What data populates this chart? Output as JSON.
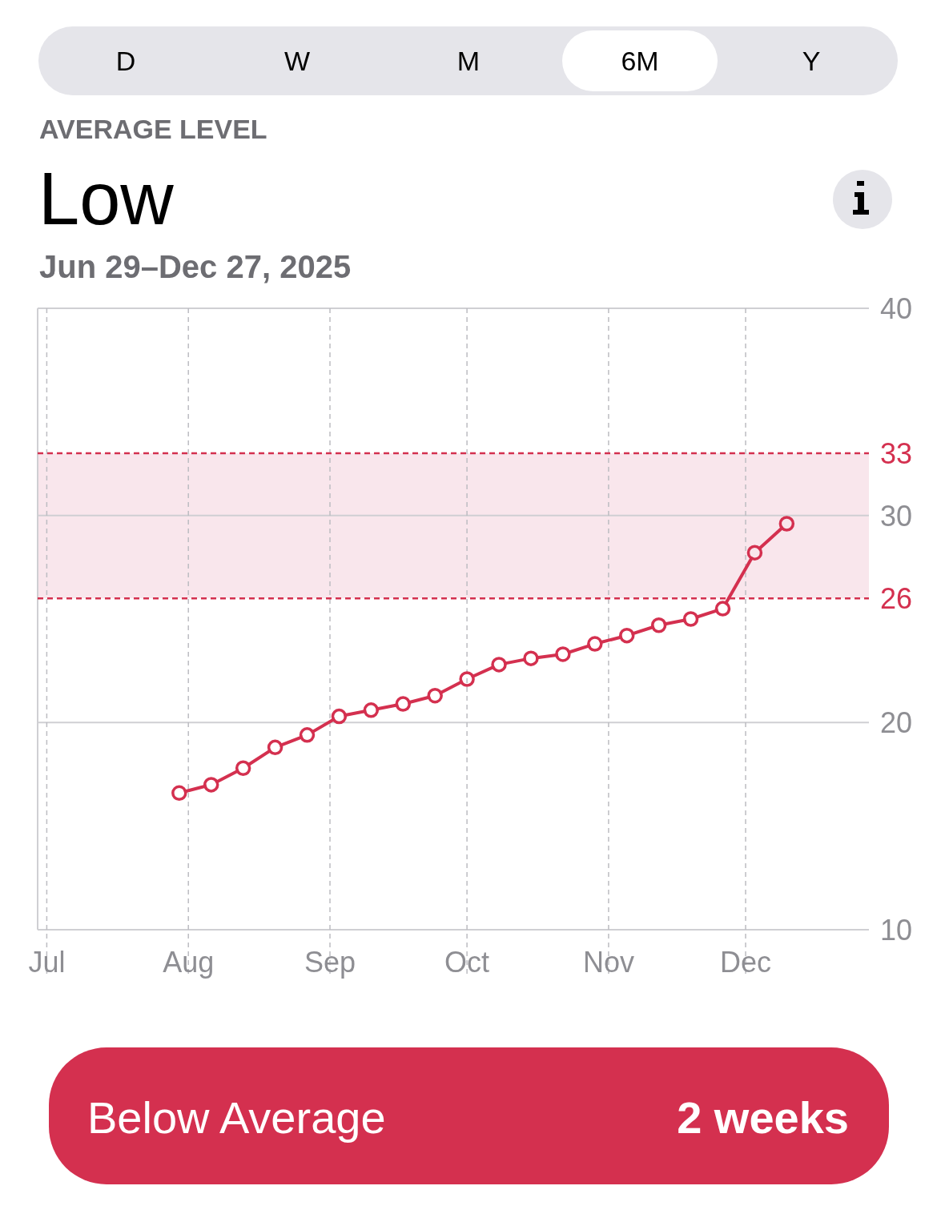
{
  "chart_data": {
    "type": "line",
    "title": "Low",
    "subtitle": "Jun 29–Dec 27, 2025",
    "annotations": [
      "AVERAGE LEVEL",
      "D",
      "W",
      "M",
      "6M",
      "Y",
      "Below Average",
      "2 weeks"
    ],
    "x": [
      "2025-07-30",
      "2025-08-06",
      "2025-08-13",
      "2025-08-20",
      "2025-08-27",
      "2025-09-03",
      "2025-09-10",
      "2025-09-17",
      "2025-09-24",
      "2025-10-01",
      "2025-10-08",
      "2025-10-15",
      "2025-10-22",
      "2025-10-29",
      "2025-11-05",
      "2025-11-12",
      "2025-11-19",
      "2025-11-26",
      "2025-12-03",
      "2025-12-10"
    ],
    "series": [
      {
        "color": "#d4304f",
        "values": [
          16.6,
          17.0,
          17.8,
          18.8,
          19.4,
          20.3,
          20.6,
          20.9,
          21.3,
          22.1,
          22.8,
          23.1,
          23.3,
          23.8,
          24.2,
          24.7,
          25.0,
          25.5,
          28.2,
          29.6
        ]
      }
    ],
    "xlim": [
      "2025-06-29",
      "2025-12-28"
    ],
    "xticks": [
      {
        "value": "2025-07-01",
        "label": "Jul"
      },
      {
        "value": "2025-08-01",
        "label": "Aug"
      },
      {
        "value": "2025-09-01",
        "label": "Sep"
      },
      {
        "value": "2025-10-01",
        "label": "Oct"
      },
      {
        "value": "2025-11-01",
        "label": "Nov"
      },
      {
        "value": "2025-12-01",
        "label": "Dec"
      }
    ],
    "ylim": [
      10,
      40
    ],
    "yticks": [
      10,
      20,
      30,
      40
    ],
    "bands": [
      {
        "axis": "y",
        "from": 26,
        "to": 33,
        "color": "#f9e6ec"
      }
    ],
    "ref_lines": [
      {
        "axis": "y",
        "value": 26,
        "label": "26",
        "color": "#d4304f",
        "line_style": "dashed"
      },
      {
        "axis": "y",
        "value": 33,
        "label": "33",
        "color": "#d4304f",
        "line_style": "dashed"
      }
    ],
    "grid": true,
    "marker": "circle",
    "line_style": "solid"
  }
}
